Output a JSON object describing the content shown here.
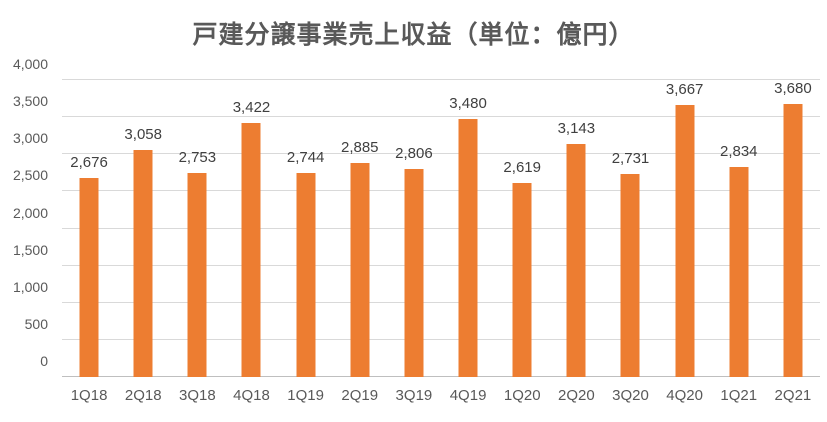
{
  "title": "戸建分譲事業売上収益（単位：億円）",
  "chart_data": {
    "type": "bar",
    "title": "戸建分譲事業売上収益（単位：億円）",
    "categories": [
      "1Q18",
      "2Q18",
      "3Q18",
      "4Q18",
      "1Q19",
      "2Q19",
      "3Q19",
      "4Q19",
      "1Q20",
      "2Q20",
      "3Q20",
      "4Q20",
      "1Q21",
      "2Q21"
    ],
    "values": [
      2676,
      3058,
      2753,
      3422,
      2744,
      2885,
      2806,
      3480,
      2619,
      3143,
      2731,
      3667,
      2834,
      3680
    ],
    "data_labels": [
      "2,676",
      "3,058",
      "2,753",
      "3,422",
      "2,744",
      "2,885",
      "2,806",
      "3,480",
      "2,619",
      "3,143",
      "2,731",
      "3,667",
      "2,834",
      "3,680"
    ],
    "xlabel": "",
    "ylabel": "",
    "ylim": [
      0,
      4000
    ],
    "ytick_step": 500,
    "ytick_labels": [
      "0",
      "500",
      "1,000",
      "1,500",
      "2,000",
      "2,500",
      "3,000",
      "3,500",
      "4,000"
    ],
    "grid": true,
    "legend": false,
    "bar_color": "#ed7d31",
    "gridline_color": "#d9d9d9",
    "title_color": "#595959",
    "axis_label_color": "#595959",
    "data_label_color": "#404040"
  }
}
